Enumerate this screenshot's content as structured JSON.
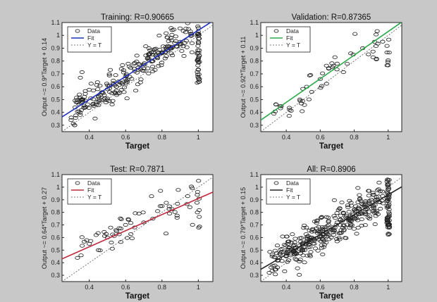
{
  "chart_data": [
    {
      "type": "scatter",
      "title": "Training: R=0.90665",
      "xlabel": "Target",
      "ylabel": "Output ~= 0.9*Target + 0.14",
      "xlim": [
        0.25,
        1.08
      ],
      "ylim": [
        0.25,
        1.1
      ],
      "xticks": [
        "0.4",
        "0.6",
        "0.8",
        "1"
      ],
      "yticks": [
        "0.3",
        "0.4",
        "0.5",
        "0.6",
        "0.7",
        "0.8",
        "0.9",
        "1",
        "1.1"
      ],
      "fit": {
        "slope": 0.9,
        "intercept": 0.14,
        "color": "#1f2fbf"
      },
      "legend": {
        "position": "top-left",
        "entries": [
          "Data",
          "Fit",
          "Y = T"
        ]
      },
      "scatter_seed": 11,
      "n_points": 230,
      "noise": 0.07,
      "target_stack_points": 45,
      "data": [
        [
          0.3,
          0.34
        ],
        [
          0.32,
          0.3
        ],
        [
          0.35,
          0.38
        ],
        [
          0.38,
          0.44
        ],
        [
          0.42,
          0.46
        ],
        [
          0.45,
          0.52
        ],
        [
          0.5,
          0.58
        ],
        [
          0.55,
          0.6
        ],
        [
          0.6,
          0.68
        ],
        [
          0.65,
          0.72
        ],
        [
          0.7,
          0.74
        ],
        [
          0.75,
          0.8
        ],
        [
          0.8,
          0.86
        ],
        [
          0.85,
          0.9
        ],
        [
          0.9,
          0.95
        ]
      ]
    },
    {
      "type": "scatter",
      "title": "Validation: R=0.87365",
      "xlabel": "Target",
      "ylabel": "Output ~= 0.92*Target + 0.11",
      "xlim": [
        0.25,
        1.08
      ],
      "ylim": [
        0.25,
        1.1
      ],
      "xticks": [
        "0.4",
        "0.6",
        "0.8",
        "1"
      ],
      "yticks": [
        "0.3",
        "0.4",
        "0.5",
        "0.6",
        "0.7",
        "0.8",
        "0.9",
        "1",
        "1.1"
      ],
      "fit": {
        "slope": 0.92,
        "intercept": 0.11,
        "color": "#2aa84a"
      },
      "legend": {
        "position": "top-left",
        "entries": [
          "Data",
          "Fit",
          "Y = T"
        ]
      },
      "scatter_seed": 23,
      "n_points": 45,
      "noise": 0.07,
      "target_stack_points": 8,
      "data": [
        [
          0.42,
          0.42
        ],
        [
          0.48,
          0.5
        ],
        [
          0.52,
          0.6
        ],
        [
          0.55,
          0.56
        ],
        [
          0.6,
          0.66
        ],
        [
          0.65,
          0.74
        ],
        [
          0.7,
          0.78
        ],
        [
          0.78,
          0.86
        ],
        [
          0.85,
          0.9
        ],
        [
          0.92,
          0.95
        ]
      ]
    },
    {
      "type": "scatter",
      "title": "Test: R=0.7871",
      "xlabel": "Target",
      "ylabel": "Output ~= 0.64*Target + 0.27",
      "xlim": [
        0.25,
        1.08
      ],
      "ylim": [
        0.25,
        1.1
      ],
      "xticks": [
        "0.4",
        "0.6",
        "0.8",
        "1"
      ],
      "yticks": [
        "0.3",
        "0.4",
        "0.5",
        "0.6",
        "0.7",
        "0.8",
        "0.9",
        "1",
        "1.1"
      ],
      "fit": {
        "slope": 0.64,
        "intercept": 0.27,
        "color": "#c0283c"
      },
      "legend": {
        "position": "top-left",
        "entries": [
          "Data",
          "Fit",
          "Y = T"
        ]
      },
      "scatter_seed": 37,
      "n_points": 55,
      "noise": 0.08,
      "target_stack_points": 10,
      "data": [
        [
          0.4,
          0.55
        ],
        [
          0.45,
          0.5
        ],
        [
          0.5,
          0.6
        ],
        [
          0.55,
          0.65
        ],
        [
          0.6,
          0.7
        ],
        [
          0.65,
          0.68
        ],
        [
          0.7,
          0.72
        ],
        [
          0.75,
          0.75
        ],
        [
          0.8,
          0.85
        ]
      ]
    },
    {
      "type": "scatter",
      "title": "All: R=0.8906",
      "xlabel": "Target",
      "ylabel": "Output ~= 0.79*Target + 0.15",
      "xlim": [
        0.25,
        1.08
      ],
      "ylim": [
        0.25,
        1.1
      ],
      "xticks": [
        "0.4",
        "0.6",
        "0.8",
        "1"
      ],
      "yticks": [
        "0.3",
        "0.4",
        "0.5",
        "0.6",
        "0.7",
        "0.8",
        "0.9",
        "1",
        "1.1"
      ],
      "fit": {
        "slope": 0.79,
        "intercept": 0.15,
        "color": "#222222"
      },
      "legend": {
        "position": "top-left",
        "entries": [
          "Data",
          "Fit",
          "Y = T"
        ]
      },
      "scatter_seed": 51,
      "n_points": 330,
      "noise": 0.07,
      "target_stack_points": 60,
      "data": [
        [
          0.3,
          0.32
        ],
        [
          0.35,
          0.42
        ],
        [
          0.4,
          0.45
        ],
        [
          0.45,
          0.5
        ],
        [
          0.5,
          0.56
        ],
        [
          0.55,
          0.6
        ],
        [
          0.6,
          0.65
        ],
        [
          0.65,
          0.7
        ],
        [
          0.7,
          0.72
        ],
        [
          0.75,
          0.76
        ],
        [
          0.8,
          0.82
        ],
        [
          0.85,
          0.86
        ],
        [
          0.9,
          0.9
        ]
      ]
    }
  ],
  "colors": {
    "figure_background": "#c8c8c8",
    "axes_background": "#ffffff",
    "marker": "#222222",
    "identity_line": "#777777"
  }
}
